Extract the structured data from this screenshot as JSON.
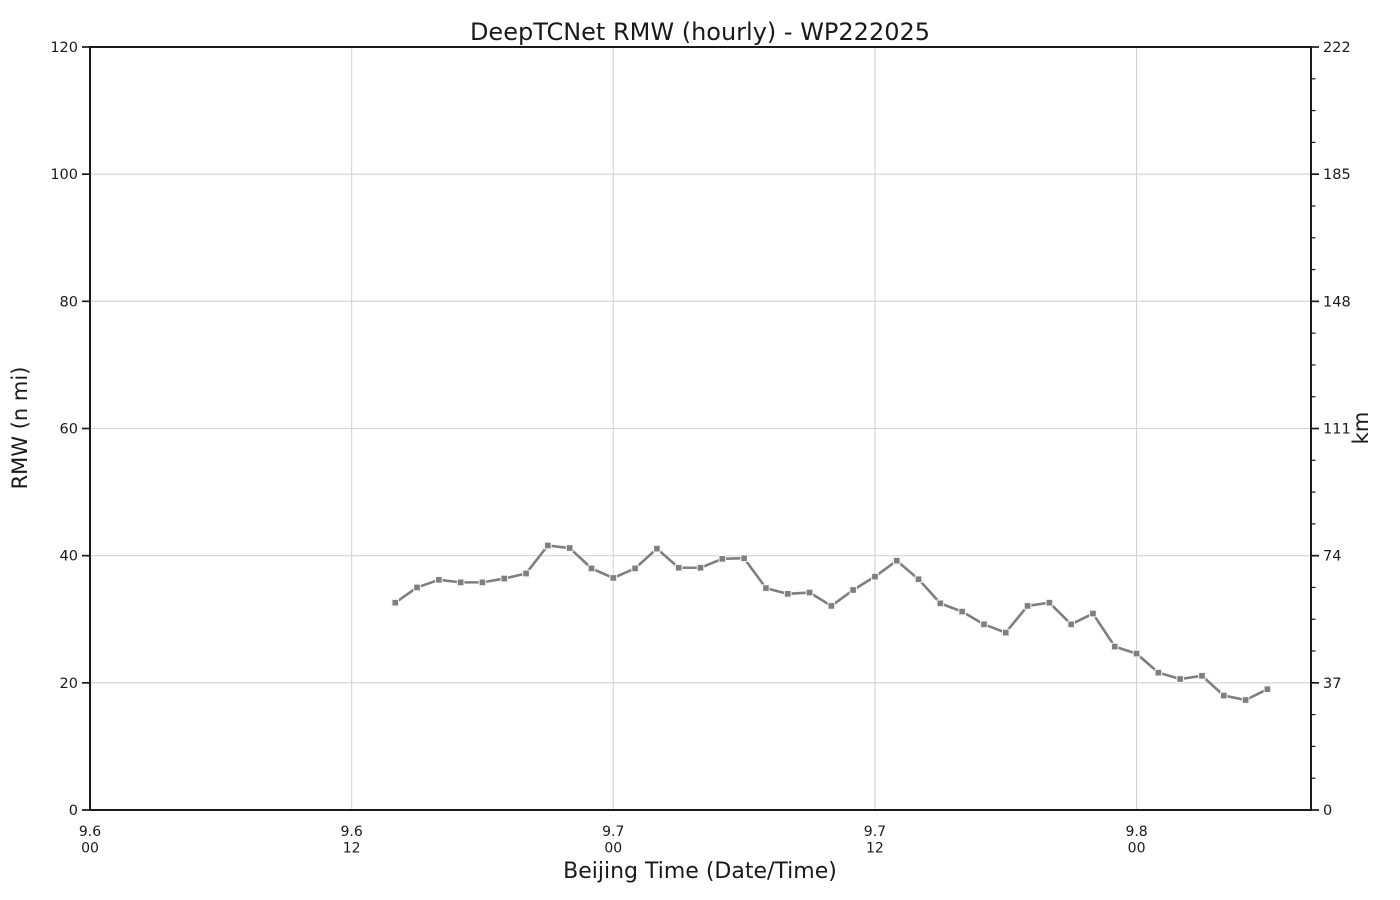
{
  "chart_data": {
    "type": "line",
    "title": "DeepTCNet RMW (hourly) - WP222025",
    "xlabel": "Beijing Time (Date/Time)",
    "ylabel_left": "RMW (n mi)",
    "ylabel_right": "km",
    "grid": true,
    "legend_position": "none",
    "x_domain_hours": [
      0,
      56
    ],
    "x_ticks": [
      {
        "hour": 0,
        "line1": "9.6",
        "line2": "00"
      },
      {
        "hour": 12,
        "line1": "9.6",
        "line2": "12"
      },
      {
        "hour": 24,
        "line1": "9.7",
        "line2": "00"
      },
      {
        "hour": 36,
        "line1": "9.7",
        "line2": "12"
      },
      {
        "hour": 48,
        "line1": "9.8",
        "line2": "00"
      }
    ],
    "ylim_left": [
      0,
      120
    ],
    "y_ticks_left": [
      0,
      20,
      40,
      60,
      80,
      100,
      120
    ],
    "ylim_right": [
      0,
      222
    ],
    "y_ticks_right": [
      0,
      37,
      74,
      111,
      148,
      185,
      222
    ],
    "y_minor_step_right": 9.25,
    "series": [
      {
        "name": "DeepTCNet RMW",
        "x_times": [
          "9.6 14",
          "9.6 15",
          "9.6 16",
          "9.6 17",
          "9.6 18",
          "9.6 19",
          "9.6 20",
          "9.6 21",
          "9.6 22",
          "9.6 23",
          "9.7 00",
          "9.7 01",
          "9.7 02",
          "9.7 03",
          "9.7 04",
          "9.7 05",
          "9.7 06",
          "9.7 07",
          "9.7 08",
          "9.7 09",
          "9.7 10",
          "9.7 11",
          "9.7 12",
          "9.7 13",
          "9.7 14",
          "9.7 15",
          "9.7 16",
          "9.7 17",
          "9.7 18",
          "9.7 19",
          "9.7 20",
          "9.7 21",
          "9.7 22",
          "9.7 23",
          "9.8 00",
          "9.8 01",
          "9.8 02",
          "9.8 03",
          "9.8 04",
          "9.8 05",
          "9.8 06"
        ],
        "hours": [
          14,
          15,
          16,
          17,
          18,
          19,
          20,
          21,
          22,
          23,
          24,
          25,
          26,
          27,
          28,
          29,
          30,
          31,
          32,
          33,
          34,
          35,
          36,
          37,
          38,
          39,
          40,
          41,
          42,
          43,
          44,
          45,
          46,
          47,
          48,
          49,
          50,
          51,
          52,
          53,
          54
        ],
        "values": [
          32.6,
          35.0,
          36.2,
          35.8,
          35.8,
          36.4,
          37.2,
          41.6,
          41.2,
          38.0,
          36.5,
          38.0,
          41.1,
          38.1,
          38.1,
          39.5,
          39.6,
          34.9,
          34.0,
          34.2,
          32.1,
          34.6,
          36.7,
          39.2,
          36.3,
          32.5,
          31.2,
          29.2,
          27.9,
          32.1,
          32.6,
          29.2,
          30.9,
          25.7,
          24.6,
          21.6,
          20.6,
          21.1,
          18.0,
          17.3,
          19.0
        ]
      }
    ],
    "colors": {
      "line": "#7f7f7f",
      "marker": "#7f7f7f",
      "marker_edge": "#f5f5f5",
      "grid": "#d4d4d4",
      "spine": "#1a1a1a",
      "text": "#1a1a1a",
      "background": "#ffffff"
    }
  }
}
